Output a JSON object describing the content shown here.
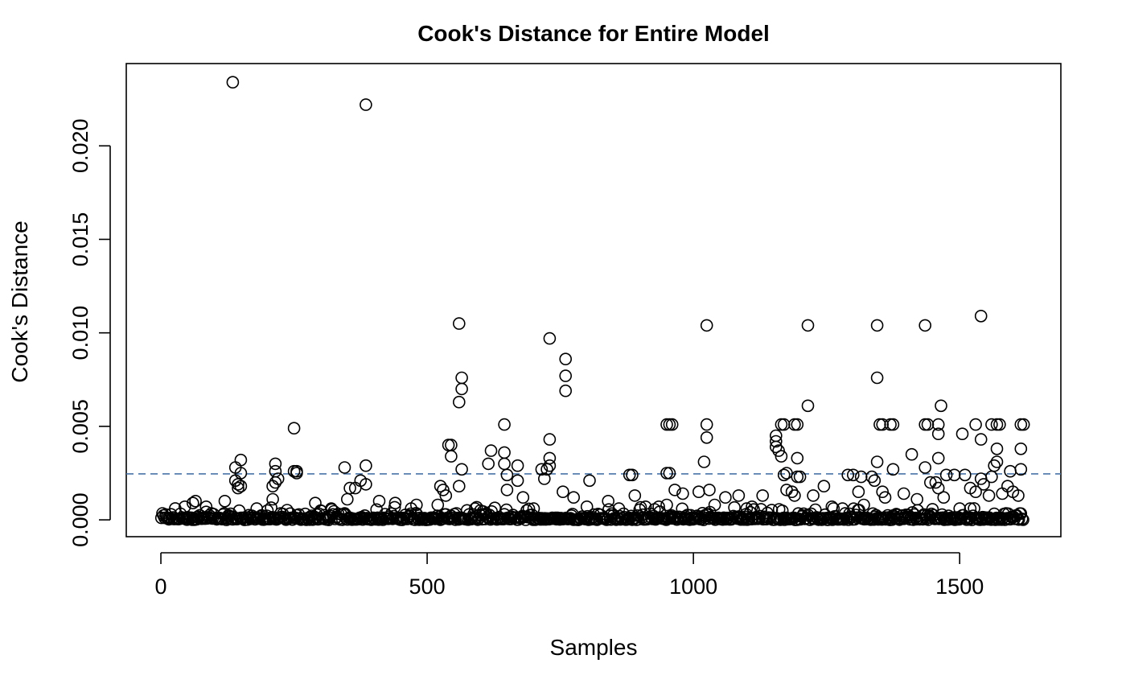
{
  "chart_data": {
    "type": "scatter",
    "title": "Cook's Distance for Entire Model",
    "xlabel": "Samples",
    "ylabel": "Cook's Distance",
    "xlim": [
      -65,
      1690
    ],
    "ylim": [
      -0.0009,
      0.0244
    ],
    "x_ticks": [
      0,
      500,
      1000,
      1500
    ],
    "x_tick_labels": [
      "0",
      "500",
      "1000",
      "1500"
    ],
    "y_ticks": [
      0.0,
      0.005,
      0.01,
      0.015,
      0.02
    ],
    "y_tick_labels": [
      "0.000",
      "0.005",
      "0.010",
      "0.015",
      "0.020"
    ],
    "grid": false,
    "legend": "none",
    "colors": {
      "points": "#000000",
      "threshold": "#4a74a8"
    },
    "reference_line": {
      "style": "dashed",
      "y": 0.00246
    },
    "series": [
      {
        "name": "Cook's Distance",
        "points": [
          [
            135,
            0.0234
          ],
          [
            385,
            0.0222
          ],
          [
            560,
            0.0105
          ],
          [
            1025,
            0.0104
          ],
          [
            1215,
            0.0104
          ],
          [
            1345,
            0.0104
          ],
          [
            1435,
            0.0104
          ],
          [
            1540,
            0.0109
          ],
          [
            730,
            0.0097
          ],
          [
            760,
            0.0086
          ],
          [
            760,
            0.0077
          ],
          [
            760,
            0.0069
          ],
          [
            565,
            0.0076
          ],
          [
            565,
            0.007
          ],
          [
            560,
            0.0063
          ],
          [
            1345,
            0.0076
          ],
          [
            250,
            0.0049
          ],
          [
            645,
            0.0051
          ],
          [
            1025,
            0.0051
          ],
          [
            1215,
            0.0061
          ],
          [
            1465,
            0.0061
          ],
          [
            1025,
            0.0044
          ],
          [
            730,
            0.0043
          ],
          [
            950,
            0.0051
          ],
          [
            955,
            0.0051
          ],
          [
            960,
            0.0051
          ],
          [
            1165,
            0.0051
          ],
          [
            1170,
            0.0051
          ],
          [
            1190,
            0.0051
          ],
          [
            1195,
            0.0051
          ],
          [
            1350,
            0.0051
          ],
          [
            1355,
            0.0051
          ],
          [
            1370,
            0.0051
          ],
          [
            1375,
            0.0051
          ],
          [
            1435,
            0.0051
          ],
          [
            1440,
            0.0051
          ],
          [
            1460,
            0.0051
          ],
          [
            1530,
            0.0051
          ],
          [
            1560,
            0.0051
          ],
          [
            1570,
            0.0051
          ],
          [
            1575,
            0.0051
          ],
          [
            1615,
            0.0051
          ],
          [
            1620,
            0.0051
          ],
          [
            1155,
            0.0045
          ],
          [
            1155,
            0.0042
          ],
          [
            1155,
            0.0039
          ],
          [
            1160,
            0.0037
          ],
          [
            1165,
            0.0034
          ],
          [
            1460,
            0.0046
          ],
          [
            1505,
            0.0046
          ],
          [
            1540,
            0.0043
          ],
          [
            1615,
            0.0038
          ],
          [
            1570,
            0.0038
          ],
          [
            540,
            0.004
          ],
          [
            545,
            0.004
          ],
          [
            545,
            0.0034
          ],
          [
            620,
            0.0037
          ],
          [
            645,
            0.0036
          ],
          [
            140,
            0.0028
          ],
          [
            150,
            0.0032
          ],
          [
            150,
            0.0025
          ],
          [
            140,
            0.0021
          ],
          [
            145,
            0.0019
          ],
          [
            150,
            0.0018
          ],
          [
            145,
            0.0017
          ],
          [
            215,
            0.003
          ],
          [
            215,
            0.0026
          ],
          [
            220,
            0.0022
          ],
          [
            215,
            0.002
          ],
          [
            210,
            0.0018
          ],
          [
            210,
            0.0011
          ],
          [
            250,
            0.0026
          ],
          [
            255,
            0.0026
          ],
          [
            255,
            0.0025
          ],
          [
            345,
            0.0028
          ],
          [
            385,
            0.0029
          ],
          [
            375,
            0.0021
          ],
          [
            385,
            0.0019
          ],
          [
            355,
            0.0017
          ],
          [
            365,
            0.0017
          ],
          [
            350,
            0.0011
          ],
          [
            565,
            0.0027
          ],
          [
            560,
            0.0018
          ],
          [
            615,
            0.003
          ],
          [
            645,
            0.003
          ],
          [
            650,
            0.0024
          ],
          [
            670,
            0.0029
          ],
          [
            670,
            0.0021
          ],
          [
            650,
            0.0016
          ],
          [
            680,
            0.0012
          ],
          [
            715,
            0.0027
          ],
          [
            725,
            0.0027
          ],
          [
            720,
            0.0022
          ],
          [
            730,
            0.0033
          ],
          [
            730,
            0.0029
          ],
          [
            755,
            0.0015
          ],
          [
            775,
            0.0012
          ],
          [
            805,
            0.0021
          ],
          [
            880,
            0.0024
          ],
          [
            885,
            0.0024
          ],
          [
            890,
            0.0013
          ],
          [
            950,
            0.0025
          ],
          [
            955,
            0.0025
          ],
          [
            965,
            0.0016
          ],
          [
            980,
            0.0014
          ],
          [
            1020,
            0.0031
          ],
          [
            1010,
            0.0015
          ],
          [
            1030,
            0.0016
          ],
          [
            1170,
            0.0024
          ],
          [
            1175,
            0.0025
          ],
          [
            1175,
            0.0016
          ],
          [
            1185,
            0.0015
          ],
          [
            1190,
            0.0013
          ],
          [
            1195,
            0.0023
          ],
          [
            1200,
            0.0023
          ],
          [
            1195,
            0.0033
          ],
          [
            1245,
            0.0018
          ],
          [
            1290,
            0.0024
          ],
          [
            1300,
            0.0024
          ],
          [
            1315,
            0.0023
          ],
          [
            1310,
            0.0015
          ],
          [
            1335,
            0.0023
          ],
          [
            1345,
            0.0031
          ],
          [
            1340,
            0.0021
          ],
          [
            1355,
            0.0015
          ],
          [
            1375,
            0.0027
          ],
          [
            1410,
            0.0035
          ],
          [
            1435,
            0.0028
          ],
          [
            1445,
            0.002
          ],
          [
            1455,
            0.002
          ],
          [
            1460,
            0.0033
          ],
          [
            1460,
            0.0017
          ],
          [
            1475,
            0.0024
          ],
          [
            1490,
            0.0024
          ],
          [
            1510,
            0.0024
          ],
          [
            1520,
            0.0017
          ],
          [
            1530,
            0.0015
          ],
          [
            1540,
            0.0022
          ],
          [
            1545,
            0.0019
          ],
          [
            1560,
            0.0023
          ],
          [
            1565,
            0.0029
          ],
          [
            1570,
            0.0031
          ],
          [
            1595,
            0.0026
          ],
          [
            1615,
            0.0027
          ],
          [
            1600,
            0.0015
          ],
          [
            1610,
            0.0013
          ],
          [
            1590,
            0.0018
          ],
          [
            1580,
            0.0014
          ],
          [
            1555,
            0.0013
          ],
          [
            1470,
            0.0012
          ],
          [
            1420,
            0.0011
          ],
          [
            1395,
            0.0014
          ],
          [
            1360,
            0.0012
          ],
          [
            1225,
            0.0013
          ],
          [
            1130,
            0.0013
          ],
          [
            1085,
            0.0013
          ],
          [
            1060,
            0.0012
          ],
          [
            950,
            0.0008
          ],
          [
            935,
            0.0007
          ],
          [
            910,
            0.0007
          ],
          [
            525,
            0.0018
          ],
          [
            530,
            0.0016
          ],
          [
            535,
            0.0013
          ],
          [
            520,
            0.0008
          ],
          [
            480,
            0.0008
          ],
          [
            440,
            0.0009
          ],
          [
            410,
            0.001
          ],
          [
            320,
            0.0006
          ],
          [
            290,
            0.0009
          ],
          [
            120,
            0.001
          ],
          [
            85,
            0.0007
          ],
          [
            65,
            0.001
          ],
          [
            60,
            0.0009
          ],
          [
            45,
            0.0007
          ],
          [
            180,
            0.0006
          ],
          [
            200,
            0.0005
          ],
          [
            300,
            0.0005
          ],
          [
            470,
            0.0006
          ],
          [
            590,
            0.0006
          ],
          [
            600,
            0.0005
          ],
          [
            700,
            0.0006
          ],
          [
            800,
            0.0007
          ],
          [
            840,
            0.001
          ],
          [
            860,
            0.0006
          ],
          [
            1040,
            0.0008
          ],
          [
            1100,
            0.0006
          ],
          [
            1110,
            0.0007
          ],
          [
            1260,
            0.0007
          ],
          [
            1280,
            0.0006
          ],
          [
            1320,
            0.0008
          ],
          [
            1500,
            0.0006
          ],
          [
            1520,
            0.0006
          ]
        ],
        "baseline_density": "dense near zero for samples 1–1620"
      }
    ]
  }
}
